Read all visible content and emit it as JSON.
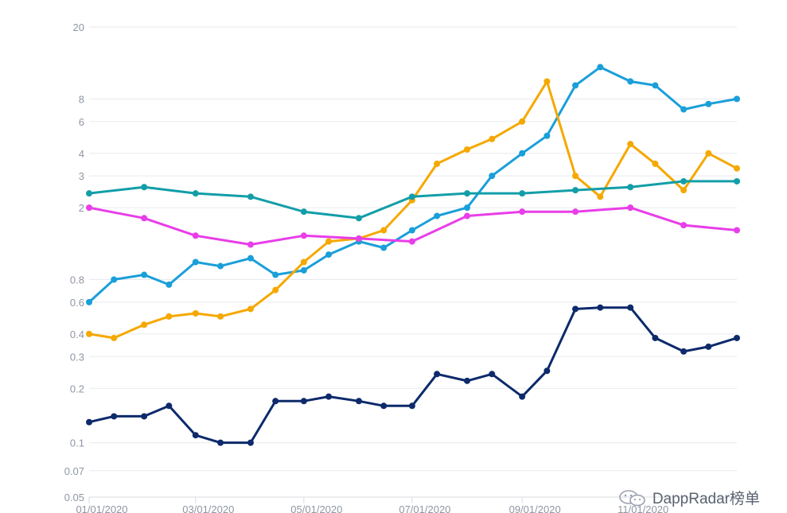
{
  "chart_data": {
    "type": "line",
    "y_scale": "log",
    "ylim": [
      0.05,
      20
    ],
    "yticks": [
      0.05,
      0.07,
      0.1,
      0.2,
      0.3,
      0.4,
      0.6,
      0.8,
      2,
      3,
      4,
      6,
      8,
      20
    ],
    "ytick_labels": [
      "0.05",
      "0.07",
      "0.1",
      "0.2",
      "0.3",
      "0.4",
      "0.6",
      "0.8",
      "2",
      "3",
      "4",
      "6",
      "8",
      "20"
    ],
    "x_range": [
      "2020-01-01",
      "2020-12-31"
    ],
    "xtick_labels": [
      "01/01/2020",
      "03/01/2020",
      "05/01/2020",
      "07/01/2020",
      "09/01/2020",
      "11/01/2020"
    ],
    "xtick_dates": [
      "2020-01-01",
      "2020-03-01",
      "2020-05-01",
      "2020-07-01",
      "2020-09-01",
      "2020-11-01"
    ],
    "grid": true,
    "series": [
      {
        "color": "#1a9fd9",
        "x": [
          "2020-01-01",
          "2020-01-15",
          "2020-02-01",
          "2020-02-15",
          "2020-03-01",
          "2020-03-15",
          "2020-04-01",
          "2020-04-15",
          "2020-05-01",
          "2020-05-15",
          "2020-06-01",
          "2020-06-15",
          "2020-07-01",
          "2020-07-15",
          "2020-08-01",
          "2020-08-15",
          "2020-09-01",
          "2020-09-15",
          "2020-10-01",
          "2020-10-15",
          "2020-11-01",
          "2020-11-15",
          "2020-12-01",
          "2020-12-15",
          "2020-12-31"
        ],
        "values": [
          0.6,
          0.8,
          0.85,
          0.75,
          1.0,
          0.95,
          1.05,
          0.85,
          0.9,
          1.1,
          1.3,
          1.2,
          1.5,
          1.8,
          2.0,
          3.0,
          4.0,
          5.0,
          9.5,
          12.0,
          10.0,
          9.5,
          7.0,
          7.5,
          8.0
        ]
      },
      {
        "color": "#f5a800",
        "x": [
          "2020-01-01",
          "2020-01-15",
          "2020-02-01",
          "2020-02-15",
          "2020-03-01",
          "2020-03-15",
          "2020-04-01",
          "2020-04-15",
          "2020-05-01",
          "2020-05-15",
          "2020-06-01",
          "2020-06-15",
          "2020-07-01",
          "2020-07-15",
          "2020-08-01",
          "2020-08-15",
          "2020-09-01",
          "2020-09-15",
          "2020-10-01",
          "2020-10-15",
          "2020-11-01",
          "2020-11-15",
          "2020-12-01",
          "2020-12-15",
          "2020-12-31"
        ],
        "values": [
          0.4,
          0.38,
          0.45,
          0.5,
          0.52,
          0.5,
          0.55,
          0.7,
          1.0,
          1.3,
          1.35,
          1.5,
          2.2,
          3.5,
          4.2,
          4.8,
          6.0,
          10.0,
          3.0,
          2.3,
          4.5,
          3.5,
          2.5,
          4.0,
          3.3
        ]
      },
      {
        "color": "#129ea8",
        "x": [
          "2020-01-01",
          "2020-02-01",
          "2020-03-01",
          "2020-04-01",
          "2020-05-01",
          "2020-06-01",
          "2020-07-01",
          "2020-08-01",
          "2020-09-01",
          "2020-10-01",
          "2020-11-01",
          "2020-12-01",
          "2020-12-31"
        ],
        "values": [
          2.4,
          2.6,
          2.4,
          2.3,
          1.9,
          1.75,
          2.3,
          2.4,
          2.4,
          2.5,
          2.6,
          2.8,
          2.8
        ]
      },
      {
        "color": "#e83ee8",
        "x": [
          "2020-01-01",
          "2020-02-01",
          "2020-03-01",
          "2020-04-01",
          "2020-05-01",
          "2020-06-01",
          "2020-07-01",
          "2020-08-01",
          "2020-09-01",
          "2020-10-01",
          "2020-11-01",
          "2020-12-01",
          "2020-12-31"
        ],
        "values": [
          2.0,
          1.75,
          1.4,
          1.25,
          1.4,
          1.35,
          1.3,
          1.8,
          1.9,
          1.9,
          2.0,
          1.6,
          1.5
        ]
      },
      {
        "color": "#0d2a6b",
        "x": [
          "2020-01-01",
          "2020-01-15",
          "2020-02-01",
          "2020-02-15",
          "2020-03-01",
          "2020-03-15",
          "2020-04-01",
          "2020-04-15",
          "2020-05-01",
          "2020-05-15",
          "2020-06-01",
          "2020-06-15",
          "2020-07-01",
          "2020-07-15",
          "2020-08-01",
          "2020-08-15",
          "2020-09-01",
          "2020-09-15",
          "2020-10-01",
          "2020-10-15",
          "2020-11-01",
          "2020-11-15",
          "2020-12-01",
          "2020-12-15",
          "2020-12-31"
        ],
        "values": [
          0.13,
          0.14,
          0.14,
          0.16,
          0.11,
          0.1,
          0.1,
          0.17,
          0.17,
          0.18,
          0.17,
          0.16,
          0.16,
          0.24,
          0.22,
          0.24,
          0.18,
          0.25,
          0.55,
          0.56,
          0.56,
          0.38,
          0.32,
          0.34,
          0.38
        ]
      }
    ]
  },
  "watermark": {
    "text": "DappRadar榜单",
    "icon": "wechat-icon"
  }
}
